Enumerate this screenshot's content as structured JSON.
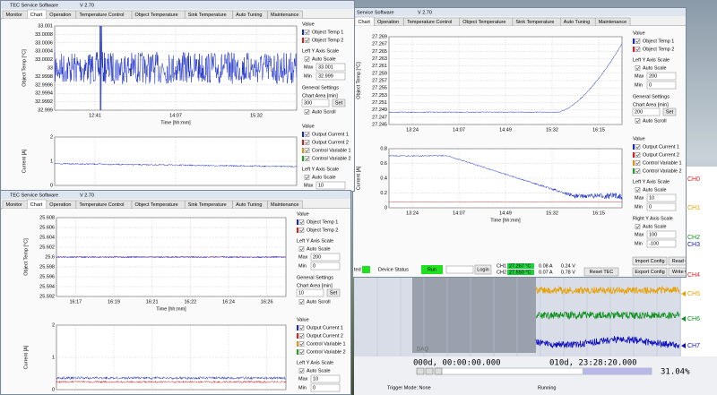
{
  "windows": [
    {
      "title": "TEC Service Software",
      "version": "V 2.70",
      "tabs": [
        "Monitor",
        "Chart",
        "Operation",
        "Temperature Control",
        "Object Temperature",
        "Sink Temperature",
        "Auto Tuning",
        "Maintenance"
      ],
      "charts": [
        {
          "y_label": "Object Temp [°C]",
          "x_label": "Time [hh:mm]",
          "yticks": [
            33.001,
            33.0008,
            33.0006,
            33.0004,
            33.0002,
            33,
            32.9998,
            32.9996,
            32.9994,
            32.9992,
            32.999
          ],
          "xticks": [
            "12:41",
            "14:07",
            "15:32"
          ],
          "panel": [
            {
              "heading": "Value",
              "checks": [
                "Object Temp 1",
                "Object Temp 2"
              ],
              "swatches": [
                "#1428c8",
                "#d02020"
              ]
            },
            {
              "heading": "Left Y Axis Scale",
              "checks": [
                "Auto Scale"
              ],
              "fields": [
                {
                  "label": "Max",
                  "value": "33.001"
                },
                {
                  "label": "Min",
                  "value": "32.999"
                }
              ]
            },
            {
              "heading": "General Settings",
              "sub": "Chart Area [min]",
              "input": "300",
              "button": "Set",
              "checks": [
                "Auto Scroll"
              ]
            }
          ]
        },
        {
          "y_label": "Current [A]",
          "yticks": [
            2,
            1,
            0
          ],
          "panel": [
            {
              "heading": "Value",
              "checks": [
                "Output Current 1",
                "Output Current 2",
                "Control Variable 1",
                "Control Variable 2"
              ],
              "swatches": [
                "#1428c8",
                "#d02020",
                "#e89010",
                "#20a020"
              ]
            },
            {
              "heading": "Left Y Axis Scale",
              "checks": [
                "Auto Scale"
              ],
              "fields": [
                {
                  "label": "Max",
                  "value": "10"
                }
              ]
            }
          ]
        }
      ]
    },
    {
      "title": "Service Software",
      "version": "V 2.70",
      "tabs": [
        "Chart",
        "Operation",
        "Temperature Control",
        "Object Temperature",
        "Sink Temperature",
        "Auto Tuning",
        "Maintenance"
      ],
      "charts": [
        {
          "y_label": "Object Temp [°C]",
          "yticks": [
            27.269,
            27.267,
            27.265,
            27.263,
            27.261,
            27.259,
            27.257,
            27.255,
            27.253,
            27.251,
            27.249,
            27.247,
            27.245
          ],
          "xticks": [
            "13:24",
            "14:07",
            "14:49",
            "15:32",
            "16:15"
          ],
          "panel": [
            {
              "heading": "Value",
              "checks": [
                "Object Temp 1",
                "Object Temp 2"
              ],
              "swatches": [
                "#1428c8",
                "#d02020"
              ]
            },
            {
              "heading": "Left Y Axis Scale",
              "checks": [
                "Auto Scale"
              ],
              "fields": [
                {
                  "label": "Max",
                  "value": "200"
                },
                {
                  "label": "Min",
                  "value": "0"
                }
              ]
            },
            {
              "heading": "General Settings",
              "sub": "Chart Area [min]",
              "input": "200",
              "button": "Set",
              "checks": [
                "Auto Scroll"
              ]
            }
          ]
        },
        {
          "y_label": "Current [A]",
          "x_label": "Time [hh:mm]",
          "yticks": [
            0.8,
            0.6,
            0.4,
            0.2,
            0
          ],
          "xticks": [
            "13:24",
            "14:07",
            "14:49",
            "15:32",
            "16:15"
          ],
          "panel": [
            {
              "heading": "Value",
              "checks": [
                "Output Current 1",
                "Output Current 2",
                "Control Variable 1",
                "Control Variable 2"
              ],
              "swatches": [
                "#1428c8",
                "#d02020",
                "#e89010",
                "#20a020"
              ]
            },
            {
              "heading": "Left Y Axis Scale",
              "checks": [
                "Auto Scale"
              ],
              "fields": [
                {
                  "label": "Max",
                  "value": "10"
                },
                {
                  "label": "Min",
                  "value": "0"
                }
              ]
            },
            {
              "heading": "Right Y Axis Scale",
              "checks": [
                "Auto Scale"
              ],
              "fields": [
                {
                  "label": "Max",
                  "value": "100"
                },
                {
                  "label": "Min",
                  "value": "-100"
                }
              ]
            }
          ]
        }
      ],
      "buttons": [
        "Import Config",
        "Read Config",
        "Export Config",
        "Write Config",
        "Reset TEC"
      ],
      "status": {
        "left": "ted",
        "device_status": "Device Status",
        "run": "Run",
        "login": "Login",
        "channels": [
          {
            "name": "CH1",
            "temp": "27.267 °C",
            "current": "0.08 A",
            "voltage": "0.24 V"
          },
          {
            "name": "CH2",
            "temp": "27.550 °C",
            "current": "0.07 A",
            "voltage": "0.78 V"
          }
        ]
      }
    },
    {
      "title": "TEC Service Software",
      "version": "V 2.70",
      "tabs": [
        "Monitor",
        "Chart",
        "Operation",
        "Temperature Control",
        "Object Temperature",
        "Sink Temperature",
        "Auto Tuning",
        "Maintenance"
      ],
      "charts": [
        {
          "y_label": "Object Temp [°C]",
          "x_label": "Time [hh:mm]",
          "yticks": [
            25.608,
            25.606,
            25.604,
            25.602,
            25.6,
            25.598,
            25.596,
            25.594,
            25.592
          ],
          "xticks": [
            "16:17",
            "16:19",
            "16:21",
            "16:22",
            "16:24",
            "16:26"
          ],
          "panel": [
            {
              "heading": "Value",
              "checks": [
                "Object Temp 1",
                "Object Temp 2"
              ],
              "swatches": [
                "#1428c8",
                "#d02020"
              ]
            },
            {
              "heading": "Left Y Axis Scale",
              "checks": [
                "Auto Scale"
              ],
              "fields": [
                {
                  "label": "Max",
                  "value": "200"
                },
                {
                  "label": "Min",
                  "value": "0"
                }
              ]
            },
            {
              "heading": "General Settings",
              "sub": "Chart Area [min]",
              "input": "10",
              "button": "Set",
              "checks": [
                "Auto Scroll"
              ]
            }
          ]
        },
        {
          "y_label": "Current [A]",
          "yticks": [
            2,
            1,
            0
          ],
          "panel": [
            {
              "heading": "Value",
              "checks": [
                "Output Current 1",
                "Output Current 2",
                "Control Variable 1",
                "Control Variable 2"
              ],
              "swatches": [
                "#1428c8",
                "#d02020",
                "#e89010",
                "#20a020"
              ]
            },
            {
              "heading": "Left Y Axis Scale",
              "checks": [
                "Auto Scale"
              ],
              "fields": [
                {
                  "label": "Max",
                  "value": "10"
                },
                {
                  "label": "Min",
                  "value": "0"
                }
              ]
            }
          ]
        }
      ]
    }
  ],
  "scope": {
    "channels": [
      "CH0",
      "CH1",
      "CH2",
      "CH3",
      "CH4",
      "CH5",
      "CH6",
      "CH7"
    ],
    "colors": [
      "#e02020",
      "#e8a000",
      "#109020",
      "#1010c0",
      "#e02020",
      "#e8a000",
      "#109020",
      "#1010c0"
    ],
    "tag": "DAQ",
    "start": "000d, 00:00:00.000",
    "end": "010d, 23:28:20.000",
    "progress": "31.04%",
    "trigger": "Trigger Mode: None",
    "state": "Running"
  }
}
